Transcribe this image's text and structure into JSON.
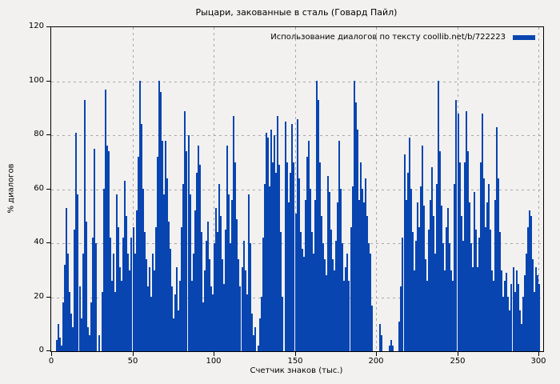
{
  "title": "Рыцари, закованные в сталь (Говард Пайл)",
  "legend": {
    "label": "Использование диалогов по тексту coollib.net/b/722223",
    "swatch_color": "#0845b1"
  },
  "axes": {
    "x_label": "Счетчик знаков (тыс.)",
    "y_label": "% диалогов",
    "x_ticks": [
      0,
      50,
      100,
      150,
      200,
      250,
      300
    ],
    "y_ticks": [
      0,
      20,
      40,
      60,
      80,
      100,
      120
    ]
  },
  "colors": {
    "background": "#f2f1ef",
    "bar": "#0845b1",
    "grid": "#a6a6a6",
    "frame": "#000000"
  },
  "chart_data": {
    "type": "bar",
    "title": "Рыцари, закованные в сталь (Говард Пайл)",
    "xlabel": "Счетчик знаков (тыс.)",
    "ylabel": "% диалогов",
    "xlim": [
      0,
      300
    ],
    "ylim": [
      0,
      120
    ],
    "grid": true,
    "legend_position": "top-right",
    "series_name": "Использование диалогов по тексту coollib.net/b/722223",
    "x_start": 0,
    "x_step": 1,
    "values": [
      0,
      0,
      0,
      4,
      10,
      5,
      2,
      18,
      32,
      53,
      36,
      22,
      14,
      9,
      45,
      81,
      58,
      24,
      12,
      36,
      93,
      48,
      9,
      6,
      18,
      42,
      75,
      40,
      0,
      6,
      0,
      22,
      60,
      97,
      76,
      74,
      42,
      26,
      36,
      22,
      58,
      46,
      31,
      26,
      42,
      63,
      50,
      36,
      30,
      42,
      46,
      36,
      52,
      72,
      100,
      84,
      60,
      44,
      34,
      24,
      31,
      20,
      36,
      30,
      46,
      72,
      100,
      96,
      78,
      58,
      78,
      64,
      48,
      38,
      24,
      12,
      21,
      31,
      15,
      26,
      46,
      62,
      89,
      74,
      80,
      58,
      26,
      36,
      52,
      66,
      76,
      69,
      44,
      18,
      30,
      41,
      48,
      34,
      24,
      21,
      40,
      53,
      44,
      62,
      50,
      34,
      25,
      45,
      76,
      58,
      40,
      56,
      87,
      70,
      49,
      34,
      24,
      31,
      41,
      30,
      21,
      58,
      40,
      14,
      6,
      9,
      0,
      2,
      12,
      20,
      42,
      62,
      81,
      79,
      61,
      82,
      70,
      80,
      66,
      87,
      69,
      44,
      20,
      0,
      85,
      70,
      55,
      66,
      84,
      70,
      51,
      86,
      64,
      44,
      38,
      35,
      56,
      72,
      78,
      60,
      44,
      36,
      56,
      100,
      93,
      70,
      50,
      40,
      34,
      28,
      65,
      59,
      45,
      34,
      30,
      41,
      55,
      78,
      60,
      40,
      26,
      31,
      36,
      26,
      46,
      61,
      100,
      92,
      82,
      56,
      70,
      60,
      55,
      64,
      50,
      40,
      36,
      17,
      0,
      0,
      0,
      0,
      10,
      6,
      0,
      0,
      0,
      0,
      2,
      4,
      2,
      0,
      0,
      0,
      11,
      24,
      42,
      73,
      56,
      66,
      79,
      60,
      44,
      30,
      41,
      55,
      46,
      61,
      76,
      54,
      34,
      26,
      45,
      56,
      68,
      50,
      36,
      62,
      100,
      74,
      54,
      40,
      30,
      46,
      53,
      40,
      30,
      26,
      62,
      93,
      88,
      70,
      50,
      41,
      70,
      89,
      74,
      55,
      40,
      31,
      59,
      45,
      31,
      42,
      70,
      88,
      64,
      46,
      55,
      62,
      45,
      30,
      26,
      56,
      83,
      64,
      44,
      30,
      20,
      26,
      29,
      20,
      15,
      25,
      31,
      22,
      30,
      25,
      15,
      10,
      20,
      28,
      36,
      46,
      52,
      50,
      34,
      22,
      31,
      28,
      25
    ]
  }
}
